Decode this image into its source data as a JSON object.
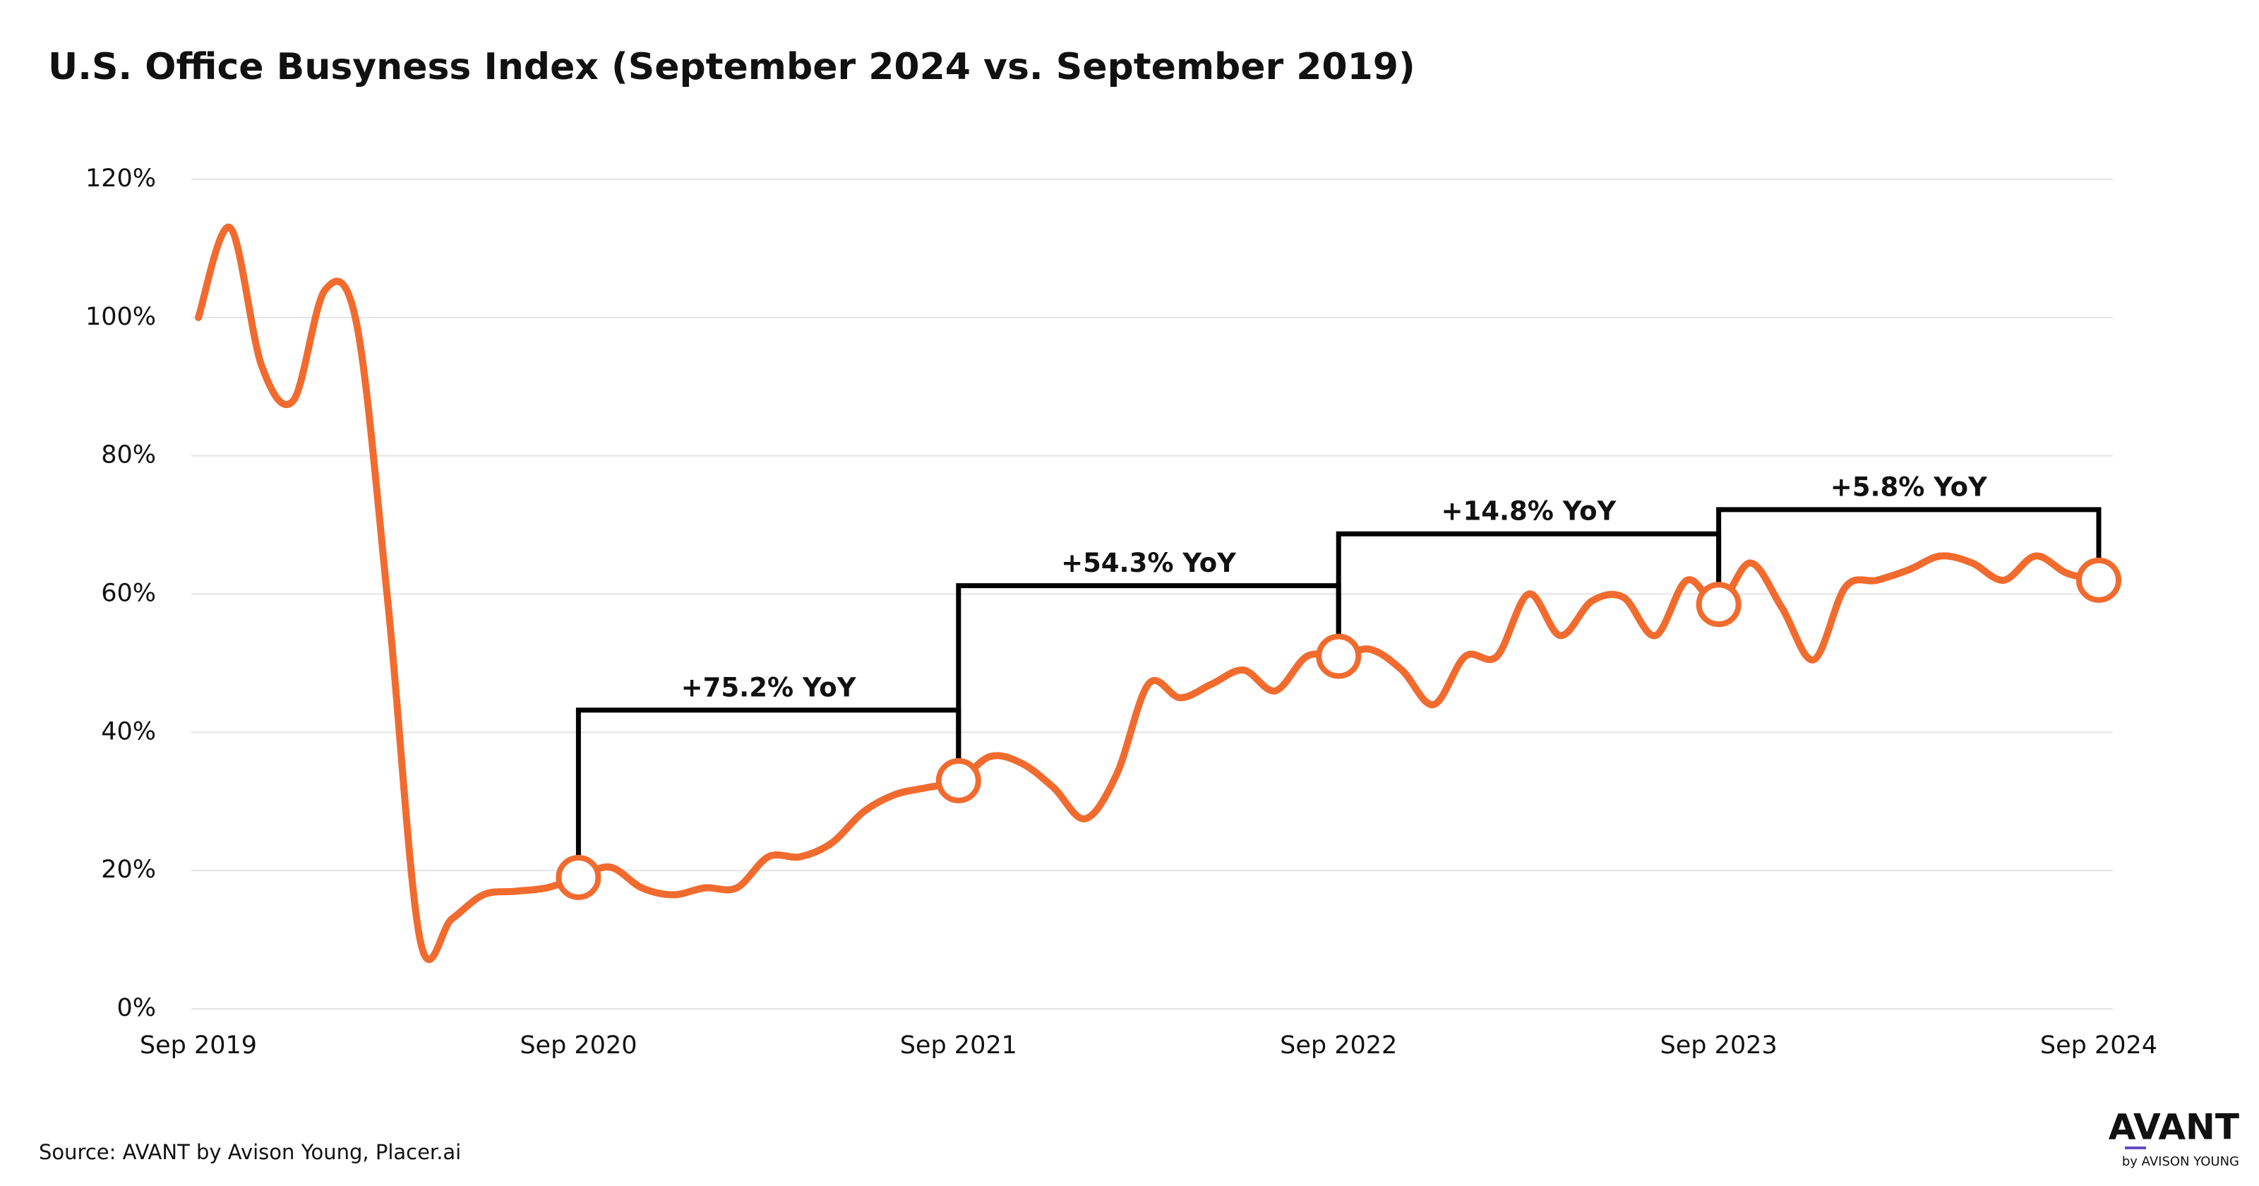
{
  "chart_data": {
    "type": "line",
    "title": "U.S. Office Busyness Index (September 2024 vs. September 2019)",
    "categories": [
      "Sep 2019",
      null,
      null,
      null,
      null,
      null,
      null,
      null,
      null,
      null,
      null,
      null,
      "Sep 2020",
      null,
      null,
      null,
      null,
      null,
      null,
      null,
      null,
      null,
      null,
      null,
      "Sep 2021",
      null,
      null,
      null,
      null,
      null,
      null,
      null,
      null,
      null,
      null,
      null,
      "Sep 2022",
      null,
      null,
      null,
      null,
      null,
      null,
      null,
      null,
      null,
      null,
      null,
      "Sep 2023",
      null,
      null,
      null,
      null,
      null,
      null,
      null,
      null,
      null,
      null,
      null,
      "Sep 2024"
    ],
    "series": [
      {
        "name": "Office Busyness Index",
        "color": "#f26b2e",
        "values": [
          100,
          113,
          93,
          88,
          104,
          99,
          58,
          10,
          13,
          16.5,
          17,
          17.5,
          19,
          20.5,
          17.5,
          16.5,
          17.5,
          17.5,
          22,
          22,
          24,
          28.5,
          31,
          32,
          33,
          36.5,
          35.5,
          32,
          27.5,
          34,
          47,
          45,
          47,
          49,
          46,
          51,
          51,
          52,
          49,
          44,
          51,
          51,
          60,
          54,
          59,
          59.5,
          54,
          62,
          58.5,
          64.5,
          58,
          50.5,
          61,
          62,
          63.5,
          65.5,
          64.5,
          62,
          65.5,
          63,
          62
        ]
      }
    ],
    "annotations": [
      "+75.2% YoY",
      "+54.3% YoY",
      "+14.8% YoY",
      "+5.8% YoY"
    ],
    "ylim": [
      0,
      120
    ],
    "yticks": [
      {
        "value": 0,
        "label": "0%"
      },
      {
        "value": 20,
        "label": "20%"
      },
      {
        "value": 40,
        "label": "40%"
      },
      {
        "value": 60,
        "label": "60%"
      },
      {
        "value": 80,
        "label": "80%"
      },
      {
        "value": 100,
        "label": "100%"
      },
      {
        "value": 120,
        "label": "120%"
      }
    ],
    "grid": true
  },
  "source": "Source: AVANT by Avison Young, Placer.ai",
  "logo": {
    "name": "AVANT",
    "sub": "by AVISON YOUNG"
  }
}
